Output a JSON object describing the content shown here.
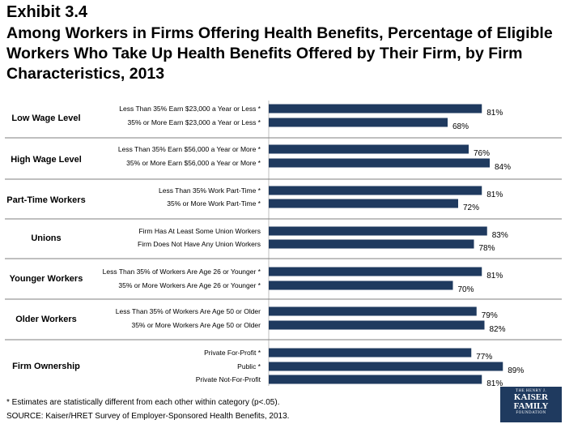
{
  "exhibit_label": "Exhibit 3.4",
  "title": "Among Workers in Firms Offering Health Benefits, Percentage of Eligible Workers Who Take Up Health Benefits Offered by Their Firm, by Firm Characteristics, 2013",
  "footnote": "* Estimates are statistically different from each other within category (p<.05).",
  "source": "SOURCE: Kaiser/HRET Survey of Employer-Sponsored Health Benefits, 2013.",
  "logo": {
    "line1": "THE HENRY J.",
    "line2": "KAISER",
    "line3": "FAMILY",
    "line4": "FOUNDATION"
  },
  "colors": {
    "bar": "#1f3a5f",
    "divider": "#7f7f7f"
  },
  "chart_data": {
    "type": "bar",
    "orientation": "horizontal",
    "value_suffix": "%",
    "xlim": [
      0,
      100
    ],
    "groups": [
      {
        "name": "Low Wage Level",
        "items": [
          {
            "label": "Less Than 35% Earn $23,000 a Year or Less *",
            "value": 81
          },
          {
            "label": "35% or More Earn $23,000 a Year or Less *",
            "value": 68
          }
        ]
      },
      {
        "name": "High Wage Level",
        "items": [
          {
            "label": "Less Than 35% Earn $56,000 a Year or More *",
            "value": 76
          },
          {
            "label": "35% or More Earn $56,000 a Year or More *",
            "value": 84
          }
        ]
      },
      {
        "name": "Part-Time Workers",
        "items": [
          {
            "label": "Less Than 35% Work Part-Time *",
            "value": 81
          },
          {
            "label": "35% or More Work Part-Time *",
            "value": 72
          }
        ]
      },
      {
        "name": "Unions",
        "items": [
          {
            "label": "Firm Has At Least Some Union Workers",
            "value": 83
          },
          {
            "label": "Firm Does Not Have Any Union Workers",
            "value": 78
          }
        ]
      },
      {
        "name": "Younger Workers",
        "items": [
          {
            "label": "Less Than 35% of Workers Are Age 26 or Younger *",
            "value": 81
          },
          {
            "label": "35% or More Workers Are Age 26 or Younger *",
            "value": 70
          }
        ]
      },
      {
        "name": "Older Workers",
        "items": [
          {
            "label": "Less Than 35% of Workers Are Age 50 or Older",
            "value": 79
          },
          {
            "label": "35% or More Workers Are Age 50 or Older",
            "value": 82
          }
        ]
      },
      {
        "name": "Firm Ownership",
        "items": [
          {
            "label": "Private For-Profit *",
            "value": 77
          },
          {
            "label": "Public *",
            "value": 89
          },
          {
            "label": "Private Not-For-Profit",
            "value": 81
          }
        ]
      }
    ]
  }
}
